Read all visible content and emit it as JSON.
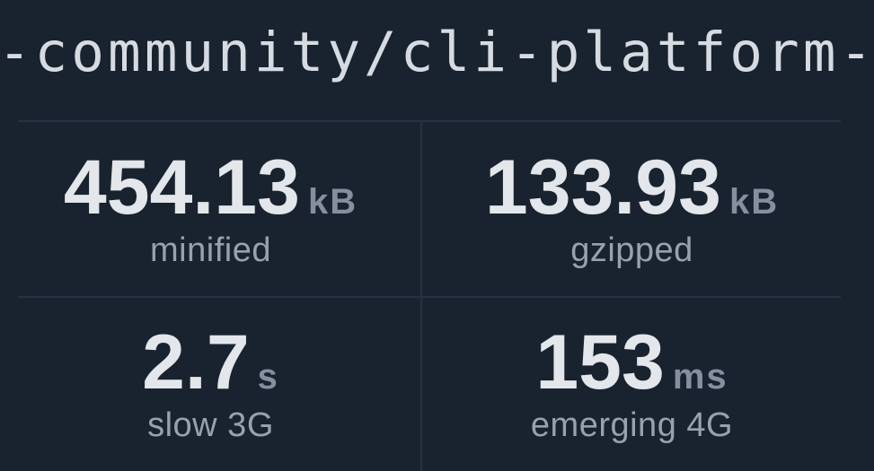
{
  "header": {
    "package_name": "-community/cli-platform-"
  },
  "stats": [
    {
      "value": "454.13",
      "unit": "kB",
      "label": "minified"
    },
    {
      "value": "133.93",
      "unit": "kB",
      "label": "gzipped"
    },
    {
      "value": "2.7",
      "unit": "s",
      "label": "slow 3G"
    },
    {
      "value": "153",
      "unit": "ms",
      "label": "emerging 4G"
    }
  ],
  "colors": {
    "background": "#19232f",
    "divider": "#273240",
    "title_text": "#d6dbe1",
    "value_text": "#e3e6ea",
    "unit_text": "#84909e",
    "label_text": "#98a2ae"
  }
}
